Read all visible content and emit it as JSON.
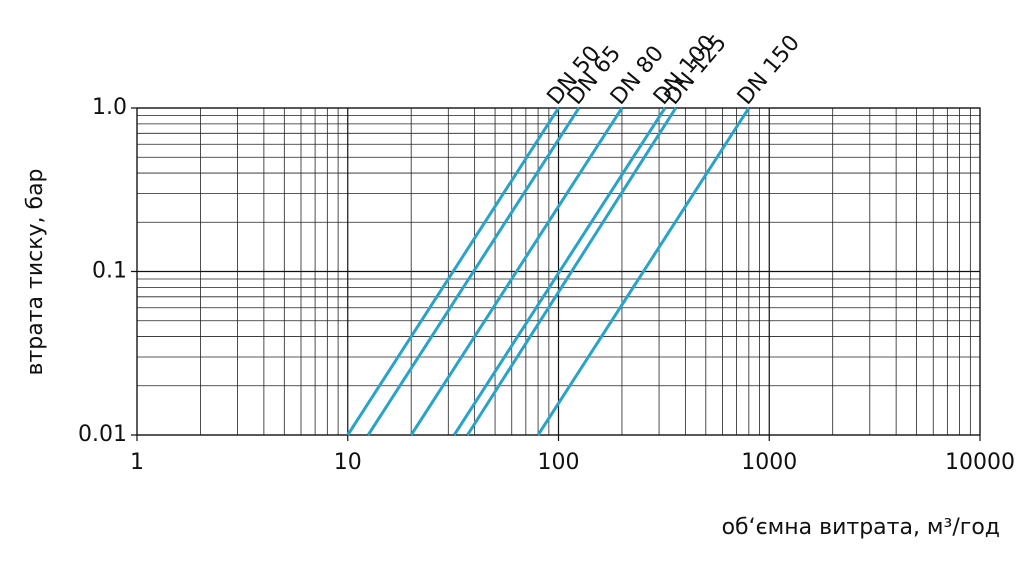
{
  "chart_data": {
    "type": "line",
    "xlabel": "об‘ємна витрата, м³/год",
    "ylabel": "втрата тиску, бар",
    "xscale": "log",
    "yscale": "log",
    "grid": true,
    "minor_grid": true,
    "xlim": [
      1,
      10000
    ],
    "xticks": [
      1,
      10,
      100,
      1000,
      10000
    ],
    "ylim": [
      0.01,
      1
    ],
    "yticks": [
      0.01,
      0.1,
      {
        "value": 1,
        "label": "1.0"
      }
    ],
    "series": [
      {
        "name": "DN 50",
        "color": "#29a3c9",
        "x": [
          10,
          100
        ],
        "values": [
          0.01,
          1
        ]
      },
      {
        "name": "DN 65",
        "color": "#29a3c9",
        "x": [
          12.5,
          125
        ],
        "values": [
          0.01,
          1
        ]
      },
      {
        "name": "DN 80",
        "color": "#29a3c9",
        "x": [
          20,
          200
        ],
        "values": [
          0.01,
          1
        ]
      },
      {
        "name": "DN 100",
        "color": "#29a3c9",
        "x": [
          32,
          320
        ],
        "values": [
          0.01,
          1
        ]
      },
      {
        "name": "DN 125",
        "color": "#29a3c9",
        "x": [
          37,
          360
        ],
        "values": [
          0.01,
          1
        ]
      },
      {
        "name": "DN 150",
        "color": "#29a3c9",
        "x": [
          80,
          800
        ],
        "values": [
          0.01,
          1
        ]
      }
    ]
  }
}
